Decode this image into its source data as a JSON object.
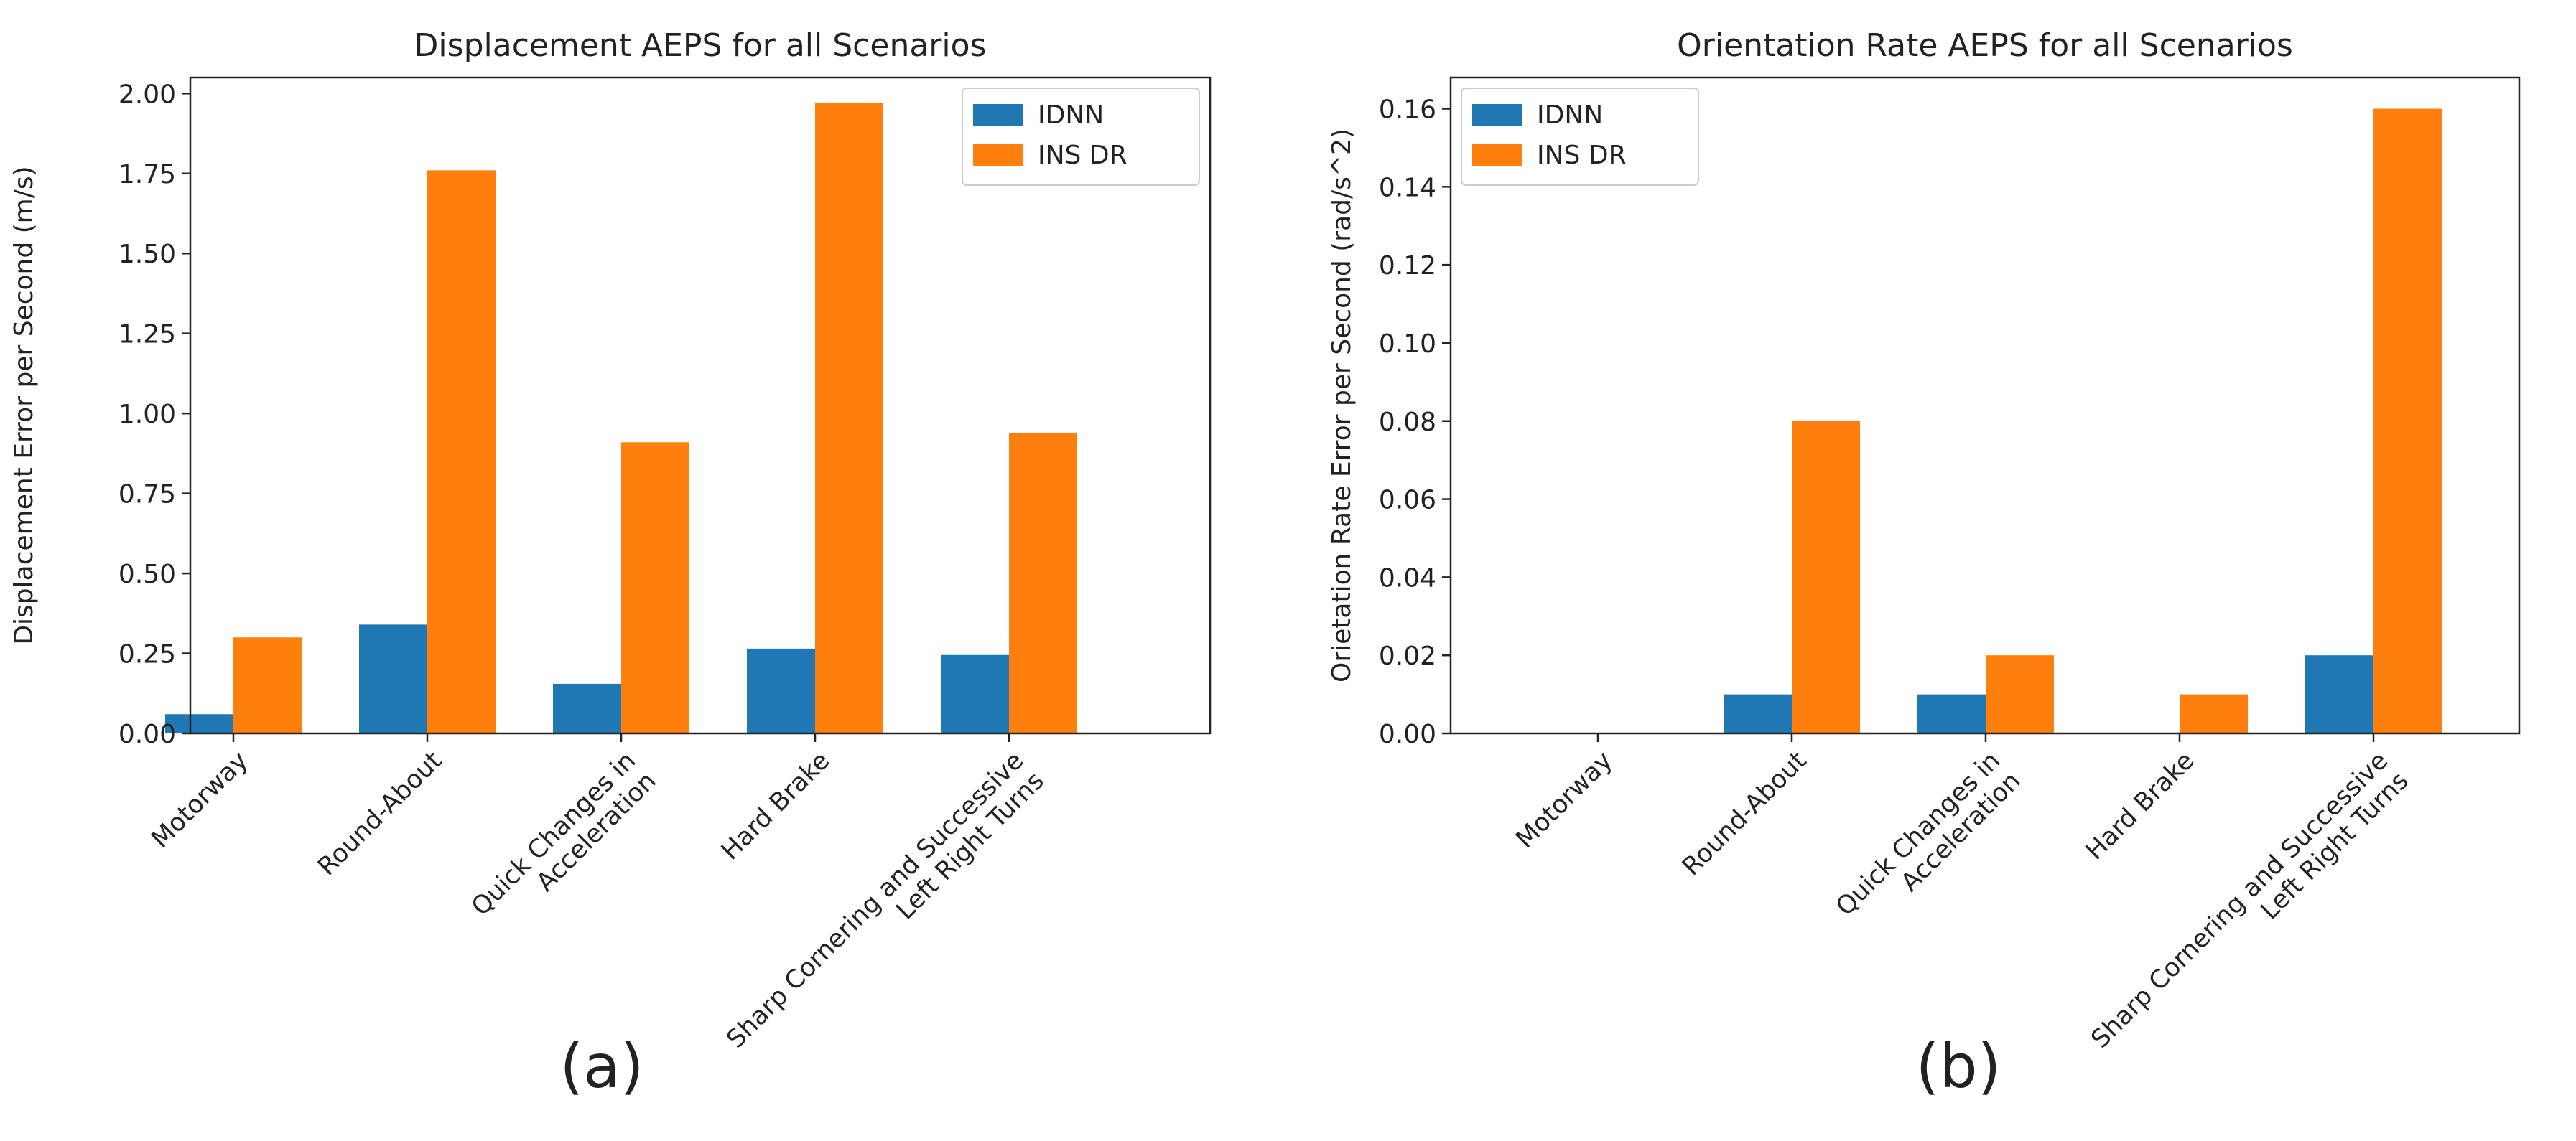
{
  "chart_data": [
    {
      "type": "bar",
      "panel_label": "(a)",
      "title": "Displacement AEPS for all Scenarios",
      "xlabel": "",
      "ylabel": "Displacement Error per Second (m/s)",
      "ylim": [
        0,
        2.05
      ],
      "yticks": [
        "0.00",
        "0.25",
        "0.50",
        "0.75",
        "1.00",
        "1.25",
        "1.50",
        "1.75",
        "2.00"
      ],
      "categories": [
        [
          "Motorway"
        ],
        [
          "Round-About"
        ],
        [
          "Quick Changes in",
          "Acceleration"
        ],
        [
          "Hard Brake"
        ],
        [
          "Sharp Cornering and Successive",
          "Left Right Turns"
        ]
      ],
      "series": [
        {
          "name": "IDNN",
          "color": "#1f77b4",
          "values": [
            0.06,
            0.34,
            0.155,
            0.265,
            0.245
          ]
        },
        {
          "name": "INS DR",
          "color": "#ff7f0e",
          "values": [
            0.3,
            1.76,
            0.91,
            1.97,
            0.94
          ]
        }
      ],
      "legend": "top-right",
      "grid": false
    },
    {
      "type": "bar",
      "panel_label": "(b)",
      "title": "Orientation Rate AEPS for all Scenarios",
      "xlabel": "",
      "ylabel": "Orietation Rate Error per Second (rad/s^2)",
      "ylim": [
        0,
        0.168
      ],
      "yticks": [
        "0.00",
        "0.02",
        "0.04",
        "0.06",
        "0.08",
        "0.10",
        "0.12",
        "0.14",
        "0.16"
      ],
      "categories": [
        [
          "Motorway"
        ],
        [
          "Round-About"
        ],
        [
          "Quick Changes in",
          "Acceleration"
        ],
        [
          "Hard Brake"
        ],
        [
          "Sharp Cornering and Successive",
          "Left Right Turns"
        ]
      ],
      "series": [
        {
          "name": "IDNN",
          "color": "#1f77b4",
          "values": [
            0,
            0.01,
            0.01,
            0,
            0.02
          ]
        },
        {
          "name": "INS DR",
          "color": "#ff7f0e",
          "values": [
            0,
            0.08,
            0.02,
            0.01,
            0.16
          ]
        }
      ],
      "legend": "top-left",
      "grid": false
    }
  ]
}
